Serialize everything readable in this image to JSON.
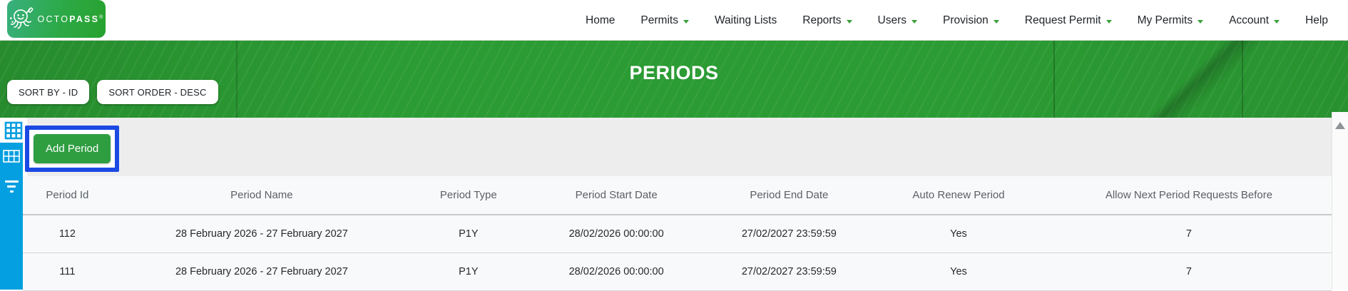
{
  "brand": {
    "octo": "OCTO",
    "pass": "PASS",
    "registered": "®"
  },
  "nav": {
    "items": [
      {
        "label": "Home",
        "caret": false
      },
      {
        "label": "Permits",
        "caret": true
      },
      {
        "label": "Waiting Lists",
        "caret": false
      },
      {
        "label": "Reports",
        "caret": true
      },
      {
        "label": "Users",
        "caret": true
      },
      {
        "label": "Provision",
        "caret": true
      },
      {
        "label": "Request Permit",
        "caret": true
      },
      {
        "label": "My Permits",
        "caret": true
      },
      {
        "label": "Account",
        "caret": true
      },
      {
        "label": "Help",
        "caret": false
      }
    ]
  },
  "banner": {
    "title": "PERIODS",
    "sort_by_label": "SORT BY - ID",
    "sort_order_label": "SORT ORDER - DESC"
  },
  "toolbar": {
    "add_button_label": "Add Period"
  },
  "sidebar": {
    "icons": [
      "data-grid-icon",
      "grid-view-icon",
      "filter-icon"
    ]
  },
  "table": {
    "columns": [
      "Period Id",
      "Period Name",
      "Period Type",
      "Period Start Date",
      "Period End Date",
      "Auto Renew Period",
      "Allow Next Period Requests Before"
    ],
    "rows": [
      [
        "112",
        "28 February 2026 - 27 February 2027",
        "P1Y",
        "28/02/2026 00:00:00",
        "27/02/2027 23:59:59",
        "Yes",
        "7"
      ],
      [
        "111",
        "28 February 2026 - 27 February 2027",
        "P1Y",
        "28/02/2026 00:00:00",
        "27/02/2027 23:59:59",
        "Yes",
        "7"
      ]
    ]
  },
  "colors": {
    "banner_green": "#2b9b33",
    "button_green": "#2f9e41",
    "sidebar_blue": "#049fe0",
    "highlight_blue": "#1b49e4",
    "caret_green": "#3aa23a",
    "logo_gradient_start": "#38b07e",
    "logo_gradient_end": "#28a22e"
  }
}
